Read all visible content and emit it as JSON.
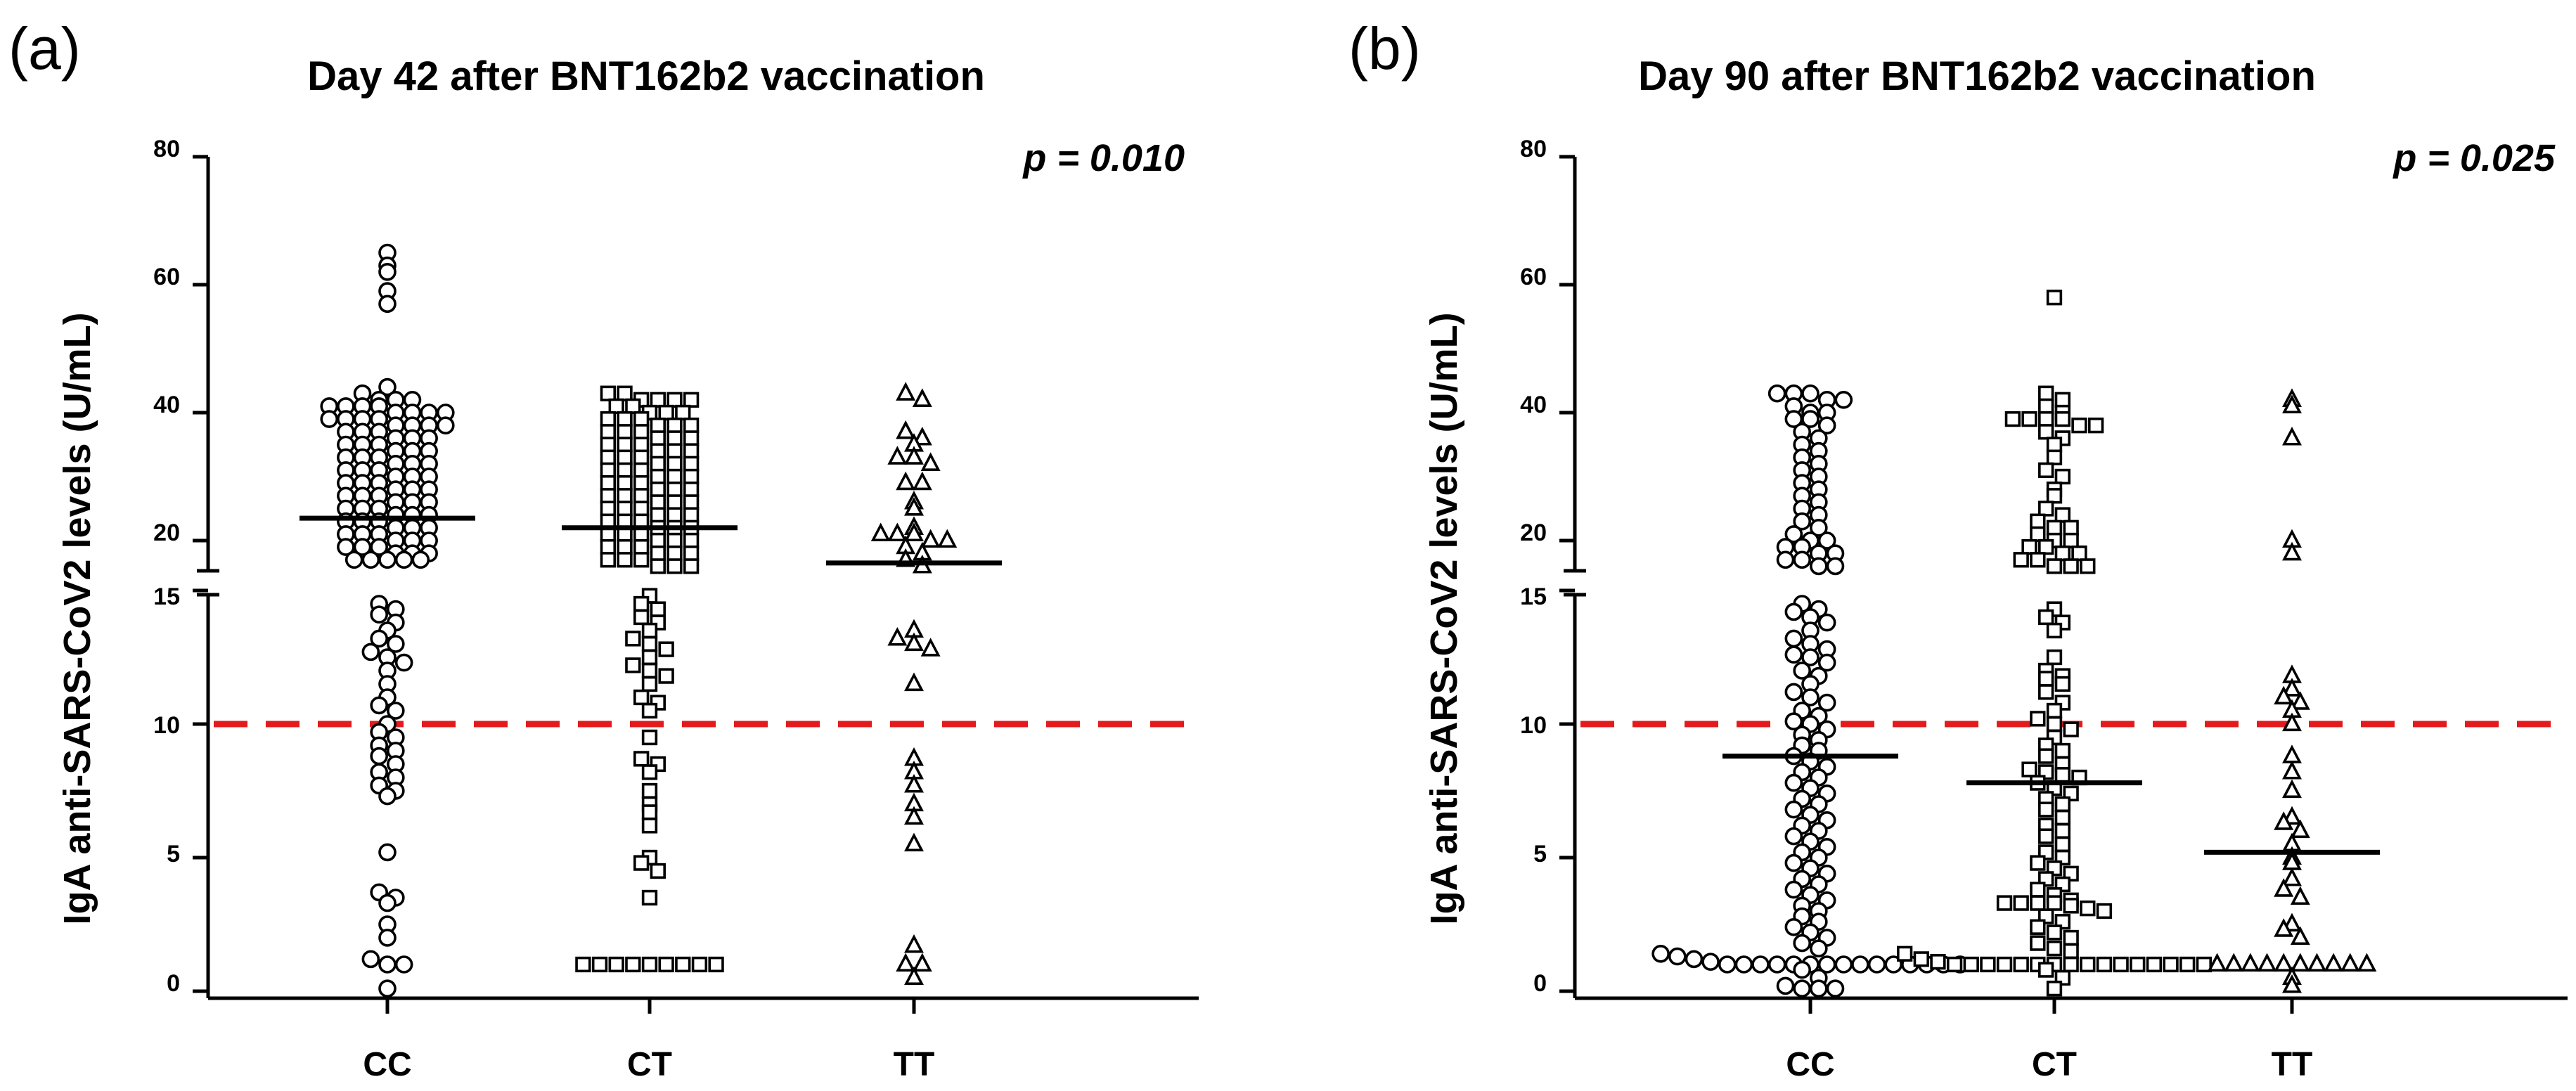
{
  "chart_data": [
    {
      "type": "scatter",
      "panel_label": "(a)",
      "title": "Day 42 after BNT162b2 vaccination",
      "ylabel": "IgA anti-SARS-CoV2 levels (U/mL)",
      "p_value": "p = 0.010",
      "categories": [
        "CC",
        "CT",
        "TT"
      ],
      "y_axis": {
        "segments": [
          {
            "range": [
              0,
              15
            ],
            "ticks": [
              0,
              5,
              10,
              15
            ]
          },
          {
            "range": [
              15,
              80
            ],
            "ticks": [
              20,
              40,
              60,
              80
            ]
          }
        ],
        "broken": true
      },
      "threshold": 10,
      "threshold_color": "#e41a1c",
      "medians": [
        23.5,
        22,
        16.5
      ],
      "series": [
        {
          "name": "CC",
          "marker": "circle",
          "values": [
            65,
            63,
            62,
            59,
            57,
            44,
            43,
            42,
            42,
            42,
            41,
            41,
            41,
            41,
            40,
            40,
            40,
            40,
            39,
            39,
            39,
            39,
            38,
            38,
            38,
            38,
            37,
            37,
            37,
            36,
            36,
            36,
            35,
            35,
            35,
            34,
            34,
            34,
            33,
            33,
            33,
            32,
            32,
            32,
            31,
            31,
            31,
            30,
            30,
            30,
            29,
            29,
            29,
            28,
            28,
            28,
            27,
            27,
            27,
            26,
            26,
            26,
            25,
            25,
            25,
            24,
            24,
            24,
            23,
            23,
            23,
            22,
            22,
            22,
            21,
            21,
            21,
            20,
            20,
            20,
            19,
            19,
            19,
            18,
            18,
            18,
            17,
            17,
            17,
            17,
            17,
            14.5,
            14.3,
            14.1,
            13.8,
            13.5,
            13.2,
            13,
            12.7,
            12.5,
            12.3,
            12,
            11.5,
            11,
            10.7,
            10.5,
            10,
            9.7,
            9.5,
            9.2,
            9,
            8.8,
            8.5,
            8.2,
            8,
            7.7,
            7.5,
            7.3,
            5.2,
            3.7,
            3.5,
            3.3,
            2.5,
            2,
            1.2,
            1,
            1,
            0.1
          ]
        },
        {
          "name": "CT",
          "marker": "square",
          "values": [
            43,
            43,
            42,
            42,
            42,
            42,
            41,
            41,
            40,
            40,
            40,
            39,
            39,
            39,
            38,
            38,
            38,
            37,
            37,
            37,
            36,
            36,
            36,
            35,
            35,
            35,
            34,
            34,
            34,
            33,
            33,
            33,
            32,
            32,
            32,
            31,
            31,
            31,
            30,
            30,
            30,
            29,
            29,
            29,
            28,
            28,
            28,
            27,
            27,
            27,
            26,
            26,
            26,
            25,
            25,
            25,
            24,
            24,
            24,
            23,
            23,
            23,
            22,
            22,
            22,
            21,
            21,
            21,
            20,
            20,
            20,
            19,
            19,
            19,
            18,
            18,
            18,
            17,
            17,
            17,
            16,
            16,
            16,
            14.8,
            14.5,
            14.3,
            14,
            13.8,
            13.5,
            13.2,
            13,
            12.8,
            12.5,
            12.2,
            12,
            11.8,
            11.5,
            11,
            10.8,
            10.5,
            9.5,
            8.7,
            8.5,
            8.2,
            7.5,
            7,
            6.7,
            6.2,
            5,
            4.8,
            4.5,
            3.5,
            1,
            1,
            1,
            1,
            1,
            1,
            1,
            1,
            1
          ]
        },
        {
          "name": "TT",
          "marker": "triangle",
          "values": [
            43,
            42,
            37,
            36,
            35,
            33,
            33,
            32,
            29,
            29,
            26,
            25,
            22,
            21,
            21,
            21,
            20,
            20,
            19,
            18,
            17,
            16,
            13.5,
            13.2,
            13,
            12.8,
            11.5,
            8.7,
            8.2,
            7.7,
            7,
            6.5,
            5.5,
            1.7,
            1,
            1,
            0.5
          ]
        }
      ]
    },
    {
      "type": "scatter",
      "panel_label": "(b)",
      "title": "Day 90 after BNT162b2 vaccination",
      "ylabel": "IgA anti-SARS-CoV2 levels (U/mL)",
      "p_value": "p = 0.025",
      "categories": [
        "CC",
        "CT",
        "TT"
      ],
      "y_axis": {
        "segments": [
          {
            "range": [
              0,
              15
            ],
            "ticks": [
              0,
              5,
              10,
              15
            ]
          },
          {
            "range": [
              15,
              80
            ],
            "ticks": [
              20,
              40,
              60,
              80
            ]
          }
        ],
        "broken": true
      },
      "threshold": 10,
      "threshold_color": "#e41a1c",
      "medians": [
        8.8,
        7.8,
        5.2
      ],
      "series": [
        {
          "name": "CC",
          "marker": "circle",
          "values": [
            43,
            43,
            43,
            42,
            42,
            41,
            40,
            40,
            39,
            39,
            38,
            37,
            36,
            35,
            34,
            33,
            32,
            31,
            30,
            29,
            28,
            27,
            26,
            25,
            24,
            23,
            22,
            21,
            20,
            20,
            19,
            19,
            18,
            18,
            17,
            17,
            16,
            16,
            14.5,
            14.3,
            14.2,
            14,
            13.8,
            13.5,
            13.2,
            13,
            12.8,
            12.6,
            12.5,
            12.3,
            12,
            11.8,
            11.5,
            11.2,
            11,
            10.8,
            10.5,
            10.3,
            10.1,
            10,
            9.8,
            9.6,
            9.4,
            9.2,
            9,
            8.8,
            8.6,
            8.4,
            8.2,
            8,
            7.8,
            7.6,
            7.4,
            7.2,
            7,
            6.8,
            6.6,
            6.4,
            6.2,
            6,
            5.8,
            5.6,
            5.4,
            5.2,
            5,
            4.8,
            4.6,
            4.4,
            4.2,
            4,
            3.8,
            3.6,
            3.4,
            3.2,
            3,
            2.8,
            2.6,
            2.4,
            2.2,
            2,
            1.8,
            1.6,
            1.4,
            1.3,
            1.2,
            1.1,
            1,
            1,
            1,
            1,
            1,
            1,
            1,
            1,
            1,
            1,
            1,
            1,
            1,
            1,
            1,
            0.8,
            0.5,
            0.2,
            0.1,
            0.1,
            0.1
          ]
        },
        {
          "name": "CT",
          "marker": "square",
          "values": [
            58,
            43,
            42,
            41,
            40,
            39,
            39,
            39,
            39,
            38,
            38,
            37,
            36,
            35,
            33,
            31,
            30,
            28,
            27,
            25,
            24,
            23,
            22,
            22,
            21,
            20,
            20,
            19,
            19,
            18,
            18,
            17,
            17,
            16,
            16,
            16,
            14.3,
            14,
            13.8,
            13.5,
            12.5,
            12,
            11.8,
            11.7,
            11.5,
            11.2,
            10.8,
            10.5,
            10.2,
            10,
            9.8,
            9.5,
            9.2,
            9,
            8.8,
            8.5,
            8.3,
            8.2,
            8.1,
            8,
            7.8,
            7.6,
            7.4,
            7.2,
            7,
            6.8,
            6.5,
            6.2,
            6,
            5.8,
            5.5,
            5.2,
            5,
            4.8,
            4.6,
            4.4,
            4.2,
            4,
            3.8,
            3.6,
            3.4,
            3.3,
            3.3,
            3.3,
            3.3,
            3.2,
            3.1,
            3,
            2.8,
            2.6,
            2.4,
            2.2,
            2,
            1.8,
            1.6,
            1.5,
            1.4,
            1.2,
            1.1,
            1,
            1,
            1,
            1,
            1,
            1,
            1,
            1,
            1,
            1,
            1,
            1,
            1,
            1,
            1,
            1,
            0.8,
            0.5,
            0.1
          ]
        },
        {
          "name": "TT",
          "marker": "triangle",
          "values": [
            42,
            41,
            36,
            20,
            18,
            11.8,
            11.3,
            11,
            10.8,
            10.5,
            10,
            8.8,
            8.2,
            7.5,
            6.5,
            6.3,
            6,
            5.5,
            5,
            4.8,
            4.2,
            3.8,
            3.5,
            2.5,
            2.3,
            2,
            1,
            1,
            1,
            1,
            1,
            1,
            1,
            1,
            1,
            1,
            0.5,
            0.2
          ]
        }
      ]
    }
  ]
}
